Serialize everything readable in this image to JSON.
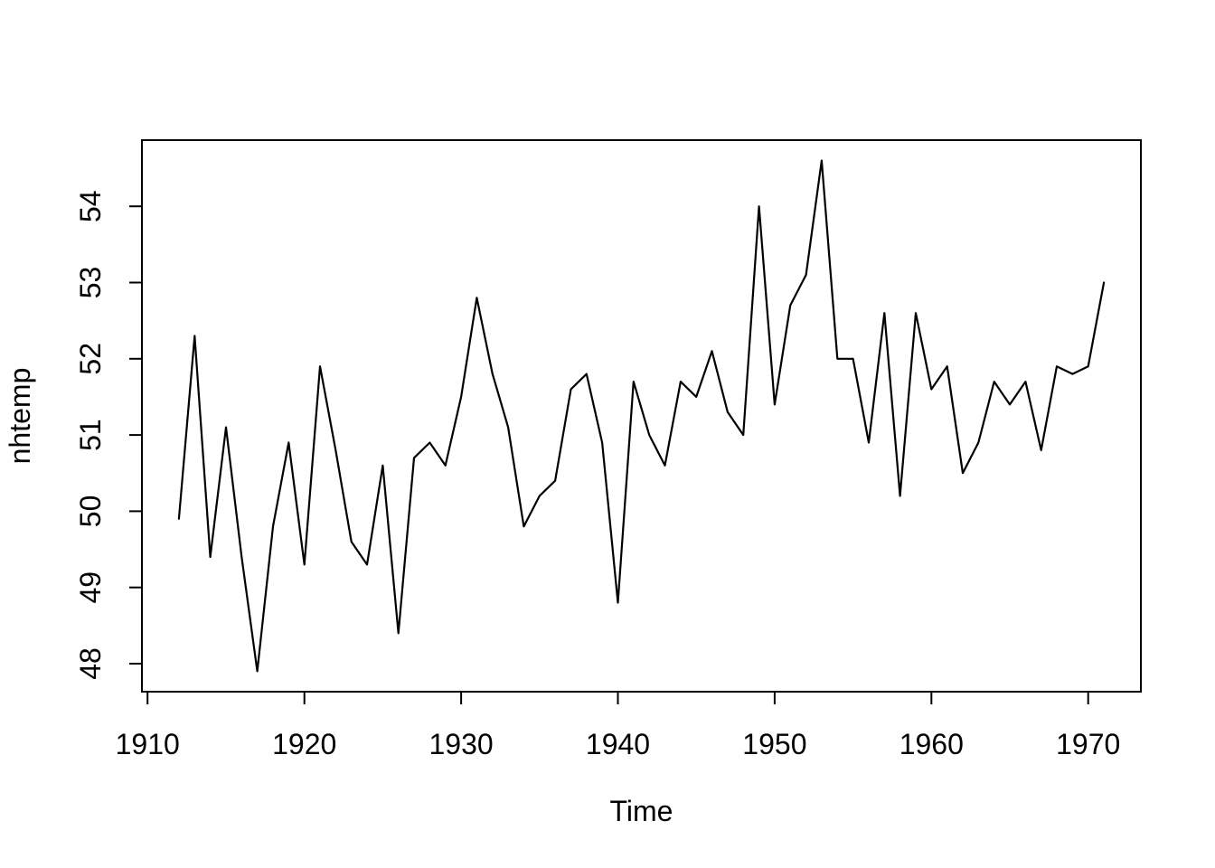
{
  "figure": {
    "background": "#ffffff",
    "text_color": "#000000",
    "axis_color": "#000000"
  },
  "chart_data": {
    "type": "line",
    "title": "",
    "xlabel": "Time",
    "ylabel": "nhtemp",
    "x_ticks": [
      1910,
      1920,
      1930,
      1940,
      1950,
      1960,
      1970
    ],
    "y_ticks": [
      48,
      49,
      50,
      51,
      52,
      53,
      54
    ],
    "xlim": [
      1909.64,
      1973.36
    ],
    "ylim": [
      47.632,
      54.868
    ],
    "grid": false,
    "legend": "none",
    "line_color": "#000000",
    "line_width": 2.2,
    "series": [
      {
        "name": "nhtemp",
        "x": [
          1912,
          1913,
          1914,
          1915,
          1916,
          1917,
          1918,
          1919,
          1920,
          1921,
          1922,
          1923,
          1924,
          1925,
          1926,
          1927,
          1928,
          1929,
          1930,
          1931,
          1932,
          1933,
          1934,
          1935,
          1936,
          1937,
          1938,
          1939,
          1940,
          1941,
          1942,
          1943,
          1944,
          1945,
          1946,
          1947,
          1948,
          1949,
          1950,
          1951,
          1952,
          1953,
          1954,
          1955,
          1956,
          1957,
          1958,
          1959,
          1960,
          1961,
          1962,
          1963,
          1964,
          1965,
          1966,
          1967,
          1968,
          1969,
          1970,
          1971
        ],
        "values": [
          49.9,
          52.3,
          49.4,
          51.1,
          49.4,
          47.9,
          49.8,
          50.9,
          49.3,
          51.9,
          50.8,
          49.6,
          49.3,
          50.6,
          48.4,
          50.7,
          50.9,
          50.6,
          51.5,
          52.8,
          51.8,
          51.1,
          49.8,
          50.2,
          50.4,
          51.6,
          51.8,
          50.9,
          48.8,
          51.7,
          51.0,
          50.6,
          51.7,
          51.5,
          52.1,
          51.3,
          51.0,
          54.0,
          51.4,
          52.7,
          53.1,
          54.6,
          52.0,
          52.0,
          50.9,
          52.6,
          50.2,
          52.6,
          51.6,
          51.9,
          50.5,
          50.9,
          51.7,
          51.4,
          51.7,
          50.8,
          51.9,
          51.8,
          51.9,
          53.0
        ]
      }
    ]
  }
}
